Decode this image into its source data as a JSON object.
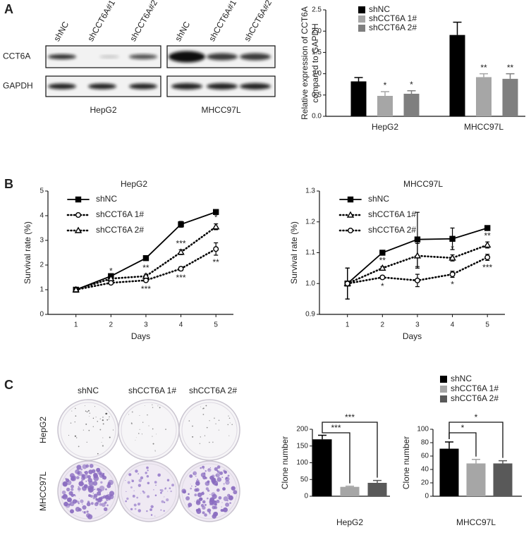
{
  "panel_labels": [
    "A",
    "B",
    "C"
  ],
  "blots": {
    "row_labels": [
      "CCT6A",
      "GAPDH"
    ],
    "cells": [
      {
        "name": "HepG2",
        "lanes": [
          "shNC",
          "shCCT6A#1",
          "shCCT6A#2"
        ]
      },
      {
        "name": "MHCC97L",
        "lanes": [
          "shNC",
          "shCCT6A#1",
          "shCCT6A#2"
        ]
      }
    ]
  },
  "plates": {
    "columns": [
      "shNC",
      "shCCT6A 1#",
      "shCCT6A 2#"
    ],
    "rows": [
      "HepG2",
      "MHCC97L"
    ]
  },
  "chart_data": [
    {
      "type": "bar",
      "y_label": [
        "Relative expression of CCT6A",
        "compared to GAPDH"
      ],
      "categories": [
        "HepG2",
        "MHCC97L"
      ],
      "series": [
        {
          "name": "shNC",
          "color": "#000000",
          "values": [
            0.82,
            1.91
          ],
          "errors": [
            0.09,
            0.3
          ]
        },
        {
          "name": "shCCT6A 1#",
          "color": "#a6a6a6",
          "values": [
            0.48,
            0.92
          ],
          "errors": [
            0.1,
            0.08
          ],
          "annotations": [
            "*",
            "**"
          ]
        },
        {
          "name": "shCCT6A 2#",
          "color": "#7f7f7f",
          "values": [
            0.53,
            0.88
          ],
          "errors": [
            0.07,
            0.12
          ],
          "annotations": [
            "*",
            "**"
          ]
        }
      ],
      "ylim": [
        0,
        2.5
      ],
      "yticks": [
        {
          "value": 0,
          "label": "0.0"
        },
        {
          "value": 0.5,
          "label": "0.5"
        },
        {
          "value": 1,
          "label": "1.0"
        },
        {
          "value": 1.5,
          "label": "1.5"
        },
        {
          "value": 2,
          "label": "2.0"
        },
        {
          "value": 2.5,
          "label": "2.5"
        }
      ],
      "legend": "top"
    },
    {
      "type": "line",
      "title": "HepG2",
      "x_label": "Days",
      "y_label": [
        "Survival rate (%)"
      ],
      "x": [
        1,
        2,
        3,
        4,
        5
      ],
      "xlim": [
        0.2,
        5.5
      ],
      "xticks": [
        1,
        2,
        3,
        4,
        5
      ],
      "ylim": [
        0,
        5
      ],
      "yticks": [
        0,
        1,
        2,
        3,
        4,
        5
      ],
      "series": [
        {
          "name": "shNC",
          "color": "#000000",
          "marker": "square",
          "dash": "solid",
          "values": [
            1,
            1.55,
            2.28,
            3.65,
            4.15
          ],
          "errors": [
            0.03,
            0.08,
            0.08,
            0.12,
            0.06
          ]
        },
        {
          "name": "shCCT6A 1#",
          "color": "#000000",
          "marker": "circle",
          "dash": "dotted",
          "values": [
            1,
            1.28,
            1.38,
            1.85,
            2.65
          ],
          "errors": [
            0.03,
            0.05,
            0.06,
            0.08,
            0.25
          ],
          "annotations": [
            null,
            null,
            "***",
            "***",
            "**"
          ],
          "annotation_side": "below"
        },
        {
          "name": "shCCT6A 2#",
          "color": "#000000",
          "marker": "triangle",
          "dash": "dotted",
          "values": [
            1,
            1.45,
            1.55,
            2.52,
            3.55
          ],
          "errors": [
            0.03,
            0.06,
            0.08,
            0.1,
            0.12
          ],
          "annotations": [
            null,
            "*",
            "**",
            "***",
            "*"
          ],
          "annotation_side": "above"
        }
      ],
      "legend": "upper left"
    },
    {
      "type": "line",
      "title": "MHCC97L",
      "x_label": "Days",
      "y_label": [
        "Survival rate (%)"
      ],
      "x": [
        1,
        2,
        3,
        4,
        5
      ],
      "xlim": [
        0.2,
        5.5
      ],
      "xticks": [
        1,
        2,
        3,
        4,
        5
      ],
      "ylim": [
        0.9,
        1.3
      ],
      "yticks": [
        0.9,
        {
          "value": 1,
          "label": "1.0"
        },
        1.1,
        1.2,
        1.3
      ],
      "series": [
        {
          "name": "shNC",
          "color": "#000000",
          "marker": "square",
          "dash": "solid",
          "values": [
            1,
            1.1,
            1.143,
            1.145,
            1.18
          ],
          "errors": [
            0.05,
            0.004,
            0.088,
            0.035,
            0.005
          ]
        },
        {
          "name": "shCCT6A 1#",
          "color": "#000000",
          "marker": "triangle",
          "dash": "dotted",
          "values": [
            1,
            1.05,
            1.09,
            1.083,
            1.125
          ],
          "errors": [
            0.05,
            0.005,
            0.04,
            0.01,
            0.01
          ],
          "annotations": [
            null,
            "**",
            null,
            "*",
            "**"
          ],
          "annotation_side": "above"
        },
        {
          "name": "shCCT6A 2#",
          "color": "#000000",
          "marker": "circle",
          "dash": "dotted",
          "values": [
            1,
            1.02,
            1.01,
            1.03,
            1.085
          ],
          "errors": [
            0.05,
            0.005,
            0.02,
            0.01,
            0.01
          ],
          "annotations": [
            null,
            "*",
            null,
            "*",
            "***"
          ],
          "annotation_side": "below"
        }
      ],
      "legend": "upper left"
    },
    {
      "type": "bar",
      "y_label": [
        "Clone number"
      ],
      "categories": [
        "HepG2"
      ],
      "series": [
        {
          "name": "shNC",
          "color": "#000000",
          "values": [
            170
          ],
          "errors": [
            12
          ]
        },
        {
          "name": "shCCT6A 1#",
          "color": "#a6a6a6",
          "values": [
            28
          ],
          "errors": [
            2
          ]
        },
        {
          "name": "shCCT6A 2#",
          "color": "#595959",
          "values": [
            40
          ],
          "errors": [
            7
          ]
        }
      ],
      "ylim": [
        0,
        200
      ],
      "yticks": [
        0,
        50,
        100,
        150,
        200
      ],
      "brackets": [
        {
          "pair": [
            "shNC",
            "shCCT6A 1#"
          ],
          "label": "***"
        },
        {
          "pair": [
            "shNC",
            "shCCT6A 2#"
          ],
          "label": "***"
        }
      ]
    },
    {
      "type": "bar",
      "y_label": [
        "Clone number"
      ],
      "categories": [
        "MHCC97L"
      ],
      "series": [
        {
          "name": "shNC",
          "color": "#000000",
          "values": [
            71
          ],
          "errors": [
            10
          ]
        },
        {
          "name": "shCCT6A 1#",
          "color": "#a6a6a6",
          "values": [
            49
          ],
          "errors": [
            6
          ]
        },
        {
          "name": "shCCT6A 2#",
          "color": "#595959",
          "values": [
            49
          ],
          "errors": [
            4
          ]
        }
      ],
      "ylim": [
        0,
        100
      ],
      "yticks": [
        0,
        20,
        40,
        60,
        80,
        100
      ],
      "brackets": [
        {
          "pair": [
            "shNC",
            "shCCT6A 1#"
          ],
          "label": "*"
        },
        {
          "pair": [
            "shNC",
            "shCCT6A 2#"
          ],
          "label": "*"
        }
      ],
      "legend": "top"
    }
  ]
}
